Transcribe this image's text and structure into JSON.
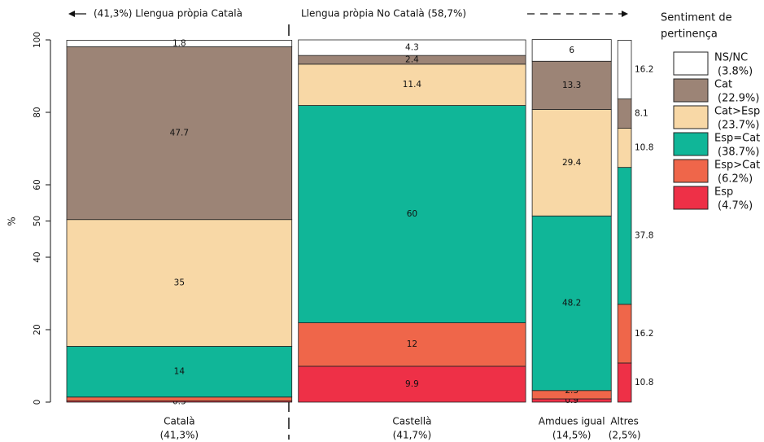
{
  "chart_data": {
    "type": "mosaic",
    "annotations": [
      "(41,3%) Llengua pròpia Català",
      "Llengua pròpia No Català (58,7%)"
    ],
    "ylabel": "%",
    "categories": [
      "Català",
      "Castellà",
      "Amdues igual",
      "Altres"
    ],
    "category_shares": [
      "(41,3%)",
      "(41,7%)",
      "(14,5%)",
      "(2,5%)"
    ],
    "widths": [
      41.3,
      41.7,
      14.5,
      2.5
    ],
    "ylim": [
      0,
      100
    ],
    "yticks": [
      0,
      20,
      40,
      50,
      60,
      80,
      100
    ],
    "legend_title": [
      "Sentiment de",
      "pertinença"
    ],
    "series": [
      {
        "name": "NS/NC",
        "share": "(3.8%)",
        "color": "#ffffff",
        "values": [
          1.8,
          4.3,
          6.0,
          16.2
        ]
      },
      {
        "name": "Cat",
        "share": "(22.9%)",
        "color": "#9c8476",
        "values": [
          47.7,
          2.4,
          13.3,
          8.1
        ]
      },
      {
        "name": "Cat>Esp",
        "share": "(23.7%)",
        "color": "#f8d8a6",
        "values": [
          35.0,
          11.4,
          29.4,
          10.8
        ]
      },
      {
        "name": "Esp=Cat",
        "share": "(38.7%)",
        "color": "#10b698",
        "values": [
          14.0,
          60.0,
          48.2,
          37.8
        ]
      },
      {
        "name": "Esp>Cat",
        "share": "(6.2%)",
        "color": "#ef664a",
        "values": [
          1.1,
          12.0,
          2.3,
          16.2
        ]
      },
      {
        "name": "Esp",
        "share": "(4.7%)",
        "color": "#ee3047",
        "values": [
          0.3,
          9.9,
          0.9,
          10.8
        ]
      }
    ]
  }
}
